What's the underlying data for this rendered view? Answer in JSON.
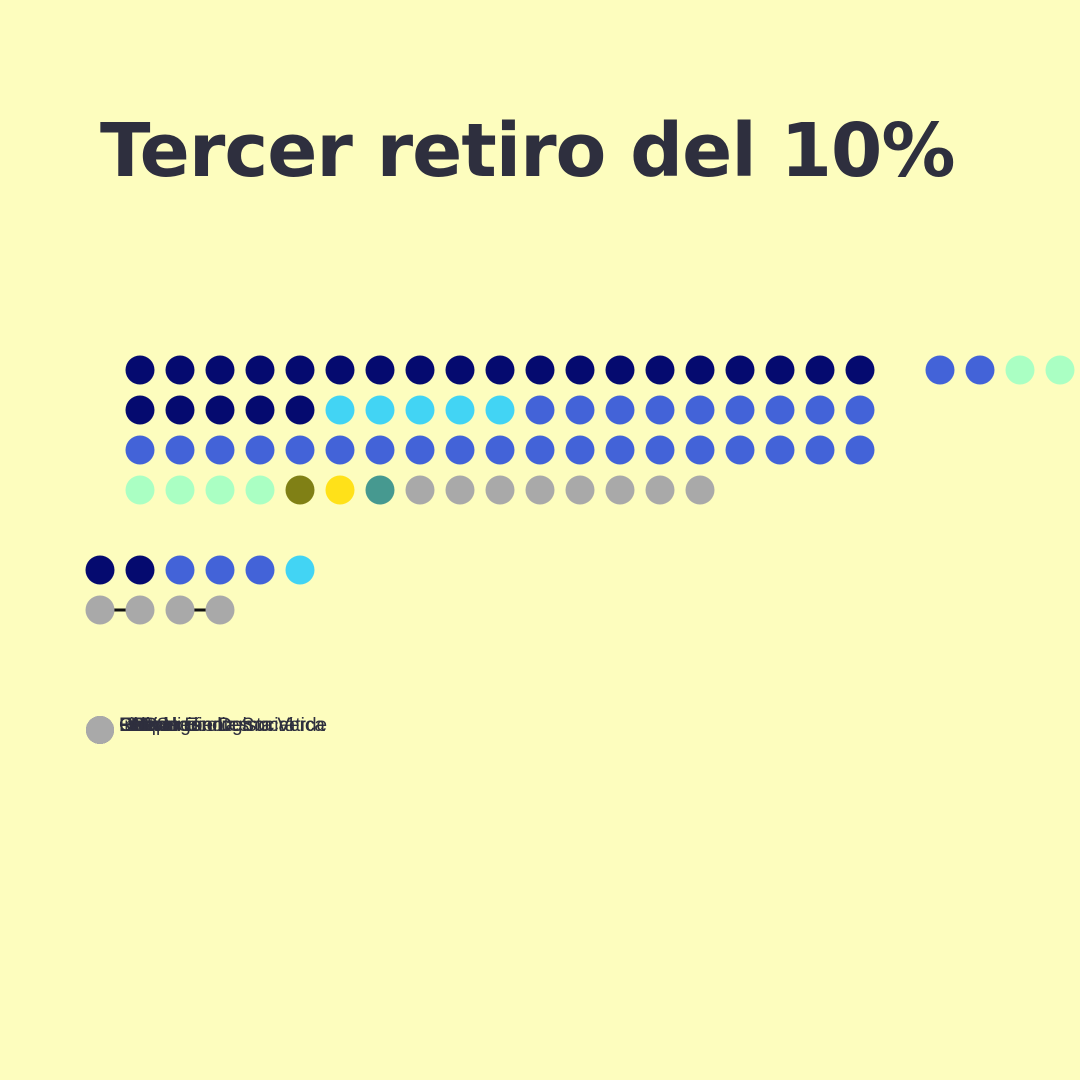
{
  "title": "Tercer retiro del 10%",
  "colors": {
    "background": "#fdfdbe",
    "title": "#2e2f3e",
    "legend_text": "#2e2f3e",
    "pair_link": "#111111"
  },
  "chart_data": {
    "type": "dot-parliament",
    "title": "Tercer retiro del 10%",
    "main_chamber": {
      "rows": [
        [
          "#050a6f",
          "#050a6f",
          "#050a6f",
          "#050a6f",
          "#050a6f",
          "#050a6f",
          "#050a6f",
          "#050a6f",
          "#050a6f",
          "#050a6f",
          "#050a6f",
          "#050a6f",
          "#050a6f",
          "#050a6f",
          "#050a6f",
          "#050a6f",
          "#050a6f",
          "#050a6f",
          "#050a6f",
          "",
          "#4363d8",
          "#4363d8",
          "#aaffc3",
          "#aaffc3"
        ],
        [
          "#050a6f",
          "#050a6f",
          "#050a6f",
          "#050a6f",
          "#050a6f",
          "#42d4f4",
          "#42d4f4",
          "#42d4f4",
          "#42d4f4",
          "#42d4f4",
          "#4363d8",
          "#4363d8",
          "#4363d8",
          "#4363d8",
          "#4363d8",
          "#4363d8",
          "#4363d8",
          "#4363d8",
          "#4363d8"
        ],
        [
          "#4363d8",
          "#4363d8",
          "#4363d8",
          "#4363d8",
          "#4363d8",
          "#4363d8",
          "#4363d8",
          "#4363d8",
          "#4363d8",
          "#4363d8",
          "#4363d8",
          "#4363d8",
          "#4363d8",
          "#4363d8",
          "#4363d8",
          "#4363d8",
          "#4363d8",
          "#4363d8",
          "#4363d8"
        ],
        [
          "#aaffc3",
          "#aaffc3",
          "#aaffc3",
          "#aaffc3",
          "#808015",
          "#ffe119",
          "#469990",
          "#a9a9a9",
          "#a9a9a9",
          "#a9a9a9",
          "#a9a9a9",
          "#a9a9a9",
          "#a9a9a9",
          "#a9a9a9",
          "#a9a9a9"
        ]
      ]
    },
    "secondary_group": {
      "rows": [
        [
          "#050a6f",
          "#050a6f",
          "#4363d8",
          "#4363d8",
          "#4363d8",
          "#42d4f4"
        ],
        [
          "#a9a9a9",
          "#a9a9a9",
          "#a9a9a9",
          "#a9a9a9"
        ]
      ],
      "links": [
        [
          0,
          1
        ],
        [
          2,
          3
        ]
      ]
    },
    "legend": {
      "marker_color": "#a9a9a9",
      "entries": [
        "Evópoli",
        "UDI",
        "RN",
        "PPD",
        "DC",
        "PS",
        "PC",
        "FRVS",
        "Independientes",
        "PR",
        "PH",
        "Comunes",
        "Liberal",
        "Revolución Democrática",
        "Convergencia Social",
        "Partido Ecologista Verde"
      ]
    }
  }
}
